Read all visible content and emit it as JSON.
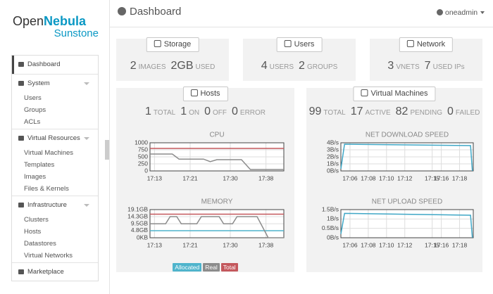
{
  "logo": {
    "open": "Open",
    "nebula": "Nebula",
    "sunstone": "Sunstone"
  },
  "header": {
    "title": "Dashboard",
    "user": "oneadmin"
  },
  "menu": [
    {
      "label": "Dashboard"
    },
    {
      "label": "System",
      "items": [
        "Users",
        "Groups",
        "ACLs"
      ]
    },
    {
      "label": "Virtual Resources",
      "items": [
        "Virtual Machines",
        "Templates",
        "Images",
        "Files & Kernels"
      ]
    },
    {
      "label": "Infrastructure",
      "items": [
        "Clusters",
        "Hosts",
        "Datastores",
        "Virtual Networks"
      ]
    },
    {
      "label": "Marketplace"
    }
  ],
  "widgets": [
    {
      "title": "Storage",
      "stats": [
        {
          "value": 2,
          "label": "IMAGES"
        },
        {
          "value": "2GB",
          "label": "USED"
        }
      ]
    },
    {
      "title": "Users",
      "stats": [
        {
          "value": 4,
          "label": "USERS"
        },
        {
          "value": 2,
          "label": "GROUPS"
        }
      ]
    },
    {
      "title": "Network",
      "stats": [
        {
          "value": 3,
          "label": "VNETS"
        },
        {
          "value": 7,
          "label": "USED IPs"
        }
      ]
    },
    {
      "title": "Hosts",
      "stats": [
        {
          "value": 1,
          "label": "TOTAL"
        },
        {
          "value": 1,
          "label": "ON"
        },
        {
          "value": 0,
          "label": "OFF"
        },
        {
          "value": 0,
          "label": "ERROR"
        }
      ],
      "legend": [
        {
          "name": "Allocated",
          "color": "#4fb4cc"
        },
        {
          "name": "Real",
          "color": "#8c8c8c"
        },
        {
          "name": "Total",
          "color": "#c4585d"
        }
      ],
      "charts": [
        {
          "type": "line",
          "title": "CPU",
          "ylim": [
            0,
            1000
          ],
          "yticks": [
            0,
            250,
            500,
            750,
            1000
          ],
          "xlim": [
            1032,
            1062
          ],
          "xticks": [
            {
              "value": 1033,
              "label": "17:13"
            },
            {
              "value": 1041,
              "label": "17:21"
            },
            {
              "value": 1050,
              "label": "17:30"
            },
            {
              "value": 1058,
              "label": "17:38"
            }
          ],
          "series": [
            {
              "color": "#c4585d",
              "x": [
                1032,
                1062
              ],
              "values": [
                800,
                800
              ]
            },
            {
              "color": "#8c8c8c",
              "x": [
                1032,
                1037,
                1038.5,
                1044,
                1045.5,
                1047,
                1052.5,
                1054.5,
                1062
              ],
              "values": [
                600,
                600,
                420,
                420,
                330,
                400,
                400,
                50,
                50
              ]
            }
          ]
        },
        {
          "type": "line",
          "title": "MEMORY",
          "ylim": [
            0,
            19.1
          ],
          "yticks": [
            {
              "value": 0,
              "label": "0KB"
            },
            {
              "value": 4.8,
              "label": "4.8GB"
            },
            {
              "value": 9.5,
              "label": "9.5GB"
            },
            {
              "value": 14.3,
              "label": "14.3GB"
            },
            {
              "value": 19.1,
              "label": "19.1GB"
            }
          ],
          "xlim": [
            1032,
            1062
          ],
          "xticks": [
            {
              "value": 1033,
              "label": "17:13"
            },
            {
              "value": 1041,
              "label": "17:21"
            },
            {
              "value": 1050,
              "label": "17:30"
            },
            {
              "value": 1058,
              "label": "17:38"
            }
          ],
          "series": [
            {
              "color": "#c4585d",
              "x": [
                1032,
                1062
              ],
              "values": [
                16,
                16
              ]
            },
            {
              "color": "#4fb4cc",
              "x": [
                1032,
                1062
              ],
              "values": [
                4.8,
                4.8
              ]
            },
            {
              "color": "#8c8c8c",
              "x": [
                1032,
                1035.5,
                1036.5,
                1038,
                1039,
                1042.5,
                1043.5,
                1047.5,
                1048.5,
                1050.5,
                1051.5,
                1056,
                1058.5,
                1062
              ],
              "values": [
                9.5,
                9.5,
                14.3,
                14.3,
                9.5,
                9.5,
                14.3,
                14.3,
                9.5,
                9.5,
                14.3,
                14.3,
                0,
                0
              ]
            }
          ]
        }
      ]
    },
    {
      "title": "Virtual Machines",
      "stats": [
        {
          "value": 99,
          "label": "TOTAL"
        },
        {
          "value": 17,
          "label": "ACTIVE"
        },
        {
          "value": 82,
          "label": "PENDING"
        },
        {
          "value": 0,
          "label": "FAILED"
        }
      ],
      "charts": [
        {
          "type": "line",
          "title": "NET DOWNLOAD SPEED",
          "ylim": [
            0,
            4
          ],
          "yticks": [
            {
              "value": 0,
              "label": "0B/s"
            },
            {
              "value": 1,
              "label": "1B/s"
            },
            {
              "value": 2,
              "label": "2B/s"
            },
            {
              "value": 3,
              "label": "3B/s"
            },
            {
              "value": 4,
              "label": "4B/s"
            }
          ],
          "xlim": [
            1025,
            1039.5
          ],
          "xticks": [
            {
              "value": 1026,
              "label": "17:06"
            },
            {
              "value": 1028,
              "label": "17:08"
            },
            {
              "value": 1030,
              "label": "17:10"
            },
            {
              "value": 1032,
              "label": "17:12"
            },
            {
              "value": 1035,
              "label": "17:15"
            },
            {
              "value": 1036,
              "label": "17:16"
            },
            {
              "value": 1038,
              "label": "17:18"
            }
          ],
          "series": [
            {
              "color": "#3fa7c6",
              "x": [
                1025,
                1025.4,
                1039.2,
                1039.4
              ],
              "values": [
                0.3,
                3.8,
                3.6,
                0
              ]
            }
          ]
        },
        {
          "type": "line",
          "title": "NET UPLOAD SPEED",
          "ylim": [
            0,
            1.5
          ],
          "yticks": [
            {
              "value": 0,
              "label": "0B/s"
            },
            {
              "value": 0.5,
              "label": "0.5B/s"
            },
            {
              "value": 1,
              "label": "1B/s"
            },
            {
              "value": 1.5,
              "label": "1.5B/s"
            }
          ],
          "xlim": [
            1025,
            1039.5
          ],
          "xticks": [
            {
              "value": 1026,
              "label": "17:06"
            },
            {
              "value": 1028,
              "label": "17:08"
            },
            {
              "value": 1030,
              "label": "17:10"
            },
            {
              "value": 1032,
              "label": "17:12"
            },
            {
              "value": 1035,
              "label": "17:15"
            },
            {
              "value": 1036,
              "label": "17:16"
            },
            {
              "value": 1038,
              "label": "17:18"
            }
          ],
          "series": [
            {
              "color": "#3fa7c6",
              "x": [
                1025,
                1025.4,
                1039.2,
                1039.4
              ],
              "values": [
                0.2,
                1.3,
                1.2,
                0
              ]
            }
          ]
        }
      ]
    }
  ]
}
